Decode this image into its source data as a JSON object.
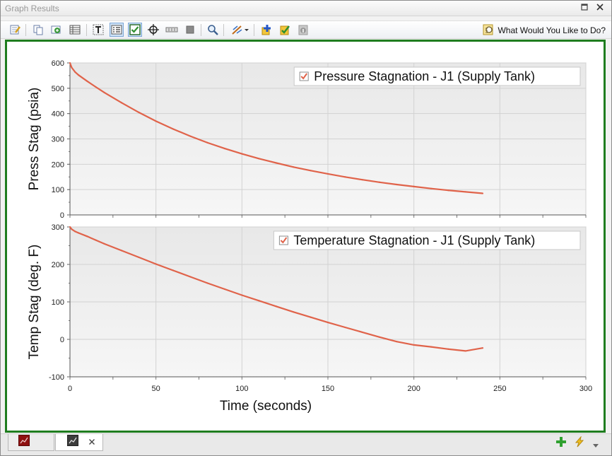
{
  "window": {
    "title": "Graph Results"
  },
  "toolbar": {
    "help_label": "What Would You Like to Do?"
  },
  "chart_data": [
    {
      "type": "line",
      "ylabel": "Press Stag (psia)",
      "xlabel": "",
      "xlim": [
        0,
        300
      ],
      "ylim": [
        0,
        600
      ],
      "x_ticks": [
        "0",
        "50",
        "100",
        "150",
        "200",
        "250",
        "300"
      ],
      "y_ticks": [
        "0",
        "100",
        "200",
        "300",
        "400",
        "500",
        "600"
      ],
      "grid": true,
      "legend_position": "top-right",
      "series": [
        {
          "name": "Pressure Stagnation - J1 (Supply Tank)",
          "color": "#e0634a",
          "x": [
            0,
            1,
            3,
            5,
            10,
            15,
            20,
            30,
            40,
            50,
            60,
            70,
            80,
            90,
            100,
            110,
            120,
            130,
            140,
            150,
            160,
            170,
            180,
            190,
            200,
            210,
            220,
            230,
            240
          ],
          "y": [
            600,
            582,
            564,
            552,
            528,
            505,
            483,
            443,
            405,
            370,
            339,
            311,
            285,
            262,
            241,
            222,
            205,
            189,
            175,
            162,
            150,
            139,
            129,
            120,
            112,
            104,
            97,
            91,
            85
          ]
        }
      ]
    },
    {
      "type": "line",
      "ylabel": "Temp Stag (deg. F)",
      "xlabel": "Time (seconds)",
      "xlim": [
        0,
        300
      ],
      "ylim": [
        -100,
        300
      ],
      "x_ticks": [
        "0",
        "50",
        "100",
        "150",
        "200",
        "250",
        "300"
      ],
      "y_ticks": [
        "-100",
        "0",
        "100",
        "200",
        "300"
      ],
      "grid": true,
      "legend_position": "top-right",
      "series": [
        {
          "name": "Temperature Stagnation - J1 (Supply Tank)",
          "color": "#e0634a",
          "x": [
            0,
            1,
            3,
            5,
            10,
            15,
            20,
            30,
            40,
            50,
            60,
            70,
            80,
            90,
            100,
            110,
            120,
            130,
            140,
            150,
            160,
            170,
            180,
            190,
            200,
            210,
            220,
            230,
            240
          ],
          "y": [
            300,
            294,
            288,
            284,
            275,
            265,
            255,
            237,
            219,
            201,
            184,
            167,
            150,
            134,
            118,
            103,
            88,
            73,
            59,
            45,
            32,
            19,
            6,
            -6,
            -15,
            -20,
            -26,
            -31,
            -23
          ]
        }
      ]
    }
  ],
  "icons": {
    "toolbar": [
      "edit-icon",
      "copy-icon",
      "export-icon",
      "table-icon",
      "text-icon",
      "legend-icon",
      "checkbox-icon",
      "crosshair-icon",
      "slider-icon",
      "stop-icon",
      "zoom-icon",
      "wand-icon",
      "add-icon",
      "check-shield-icon",
      "info-icon"
    ],
    "bottom": [
      "chart-tab-icon",
      "graph-tab-icon",
      "close-icon",
      "add-icon",
      "lightning-icon",
      "dropdown-icon"
    ]
  }
}
